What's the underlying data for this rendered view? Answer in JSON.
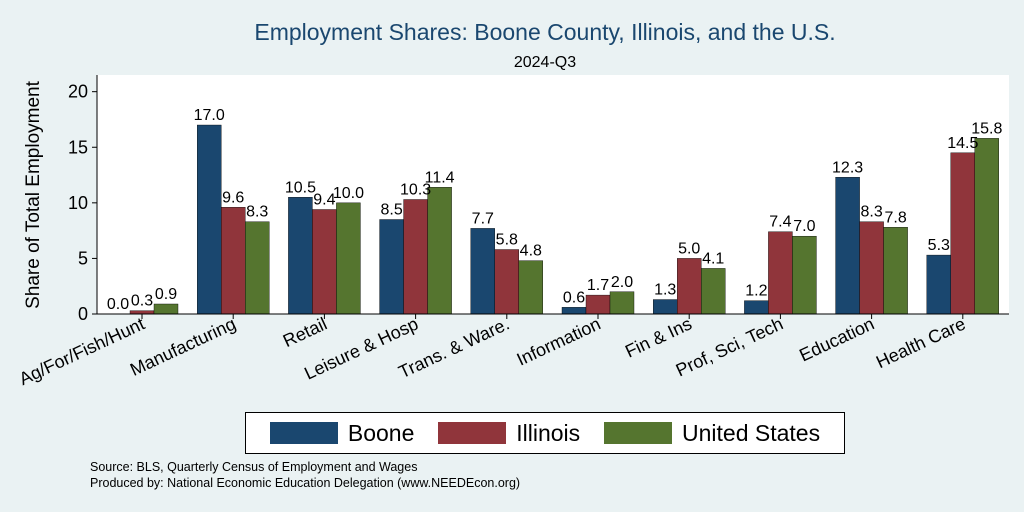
{
  "chart_data": {
    "type": "bar",
    "title": "Employment Shares: Boone County, Illinois, and the U.S.",
    "subtitle": "2024-Q3",
    "ylabel": "Share of Total Employment",
    "xlabel": "",
    "ylim": [
      0,
      21.5
    ],
    "yticks": [
      0,
      5,
      10,
      15,
      20
    ],
    "categories": [
      "Ag/For/Fish/Hunt",
      "Manufacturing",
      "Retail",
      "Leisure & Hosp",
      "Trans. & Ware.",
      "Information",
      "Fin & Ins",
      "Prof, Sci, Tech",
      "Education",
      "Health Care"
    ],
    "series": [
      {
        "name": "Boone",
        "color": "#1a476f",
        "values": [
          0.0,
          17.0,
          10.5,
          8.5,
          7.7,
          0.6,
          1.3,
          1.2,
          12.3,
          5.3
        ]
      },
      {
        "name": "Illinois",
        "color": "#90353b",
        "values": [
          0.3,
          9.6,
          9.4,
          10.3,
          5.8,
          1.7,
          5.0,
          7.4,
          8.3,
          14.5
        ]
      },
      {
        "name": "United States",
        "color": "#55752f",
        "values": [
          0.9,
          8.3,
          10.0,
          11.4,
          4.8,
          2.0,
          4.1,
          7.0,
          7.8,
          15.8
        ]
      }
    ],
    "value_labels": [
      [
        "0.0",
        "17.0",
        "10.5",
        "8.5",
        "7.7",
        "0.6",
        "1.3",
        "1.2",
        "12.3",
        "5.3"
      ],
      [
        "0.3",
        "9.6",
        "9.4",
        "10.3",
        "5.8",
        "1.7",
        "5.0",
        "7.4",
        "8.3",
        "14.5"
      ],
      [
        "0.9",
        "8.3",
        "10.0",
        "11.4",
        "4.8",
        "2.0",
        "4.1",
        "7.0",
        "7.8",
        "15.8"
      ]
    ],
    "legend_position": "bottom",
    "grid": false
  },
  "notes": {
    "source": "Source: BLS, Quarterly Census of Employment and Wages",
    "produced_by": "Produced by: National Economic Education Delegation (www.NEEDEcon.org)"
  },
  "colors": {
    "background": "#eaf2f3",
    "plot_background": "#ffffff",
    "title": "#1a476f"
  }
}
